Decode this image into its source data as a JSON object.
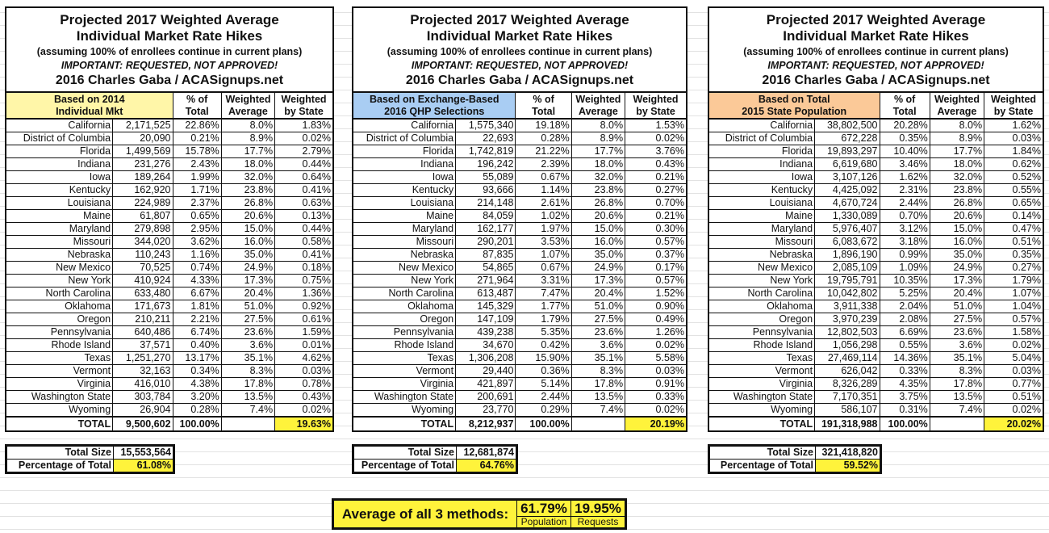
{
  "common": {
    "title_line1": "Projected 2017 Weighted Average",
    "title_line2": "Individual Market Rate Hikes",
    "subtitle": "(assuming 100% of enrollees continue in current plans)",
    "warning": "IMPORTANT: REQUESTED, NOT APPROVED!",
    "credit": "2016 Charles Gaba / ACASignups.net",
    "col_pct": [
      "% of",
      "Total"
    ],
    "col_avg": [
      "Weighted",
      "Average"
    ],
    "col_wbs": [
      "Weighted",
      "by State"
    ],
    "total_label": "TOTAL",
    "total_size_label": "Total Size",
    "pct_total_label": "Percentage of Total"
  },
  "colors": {
    "highlight": "#fff33b",
    "basis_2014": "#fff6a8",
    "basis_qhp": "#a9cdf3",
    "basis_pop": "#fbc998",
    "grid": "#e2e2e2"
  },
  "tables": [
    {
      "basis": [
        "Based on 2014",
        "Individual Mkt"
      ],
      "rows": [
        [
          "California",
          "2,171,525",
          "22.86%",
          "8.0%",
          "1.83%"
        ],
        [
          "District of Columbia",
          "20,090",
          "0.21%",
          "8.9%",
          "0.02%"
        ],
        [
          "Florida",
          "1,499,569",
          "15.78%",
          "17.7%",
          "2.79%"
        ],
        [
          "Indiana",
          "231,276",
          "2.43%",
          "18.0%",
          "0.44%"
        ],
        [
          "Iowa",
          "189,264",
          "1.99%",
          "32.0%",
          "0.64%"
        ],
        [
          "Kentucky",
          "162,920",
          "1.71%",
          "23.8%",
          "0.41%"
        ],
        [
          "Louisiana",
          "224,989",
          "2.37%",
          "26.8%",
          "0.63%"
        ],
        [
          "Maine",
          "61,807",
          "0.65%",
          "20.6%",
          "0.13%"
        ],
        [
          "Maryland",
          "279,898",
          "2.95%",
          "15.0%",
          "0.44%"
        ],
        [
          "Missouri",
          "344,020",
          "3.62%",
          "16.0%",
          "0.58%"
        ],
        [
          "Nebraska",
          "110,243",
          "1.16%",
          "35.0%",
          "0.41%"
        ],
        [
          "New Mexico",
          "70,525",
          "0.74%",
          "24.9%",
          "0.18%"
        ],
        [
          "New York",
          "410,924",
          "4.33%",
          "17.3%",
          "0.75%"
        ],
        [
          "North Carolina",
          "633,480",
          "6.67%",
          "20.4%",
          "1.36%"
        ],
        [
          "Oklahoma",
          "171,673",
          "1.81%",
          "51.0%",
          "0.92%"
        ],
        [
          "Oregon",
          "210,211",
          "2.21%",
          "27.5%",
          "0.61%"
        ],
        [
          "Pennsylvania",
          "640,486",
          "6.74%",
          "23.6%",
          "1.59%"
        ],
        [
          "Rhode Island",
          "37,571",
          "0.40%",
          "3.6%",
          "0.01%"
        ],
        [
          "Texas",
          "1,251,270",
          "13.17%",
          "35.1%",
          "4.62%"
        ],
        [
          "Vermont",
          "32,163",
          "0.34%",
          "8.3%",
          "0.03%"
        ],
        [
          "Virginia",
          "416,010",
          "4.38%",
          "17.8%",
          "0.78%"
        ],
        [
          "Washington State",
          "303,784",
          "3.20%",
          "13.5%",
          "0.43%"
        ],
        [
          "Wyoming",
          "26,904",
          "0.28%",
          "7.4%",
          "0.02%"
        ]
      ],
      "total": {
        "count": "9,500,602",
        "pct": "100.00%",
        "weighted": "19.63%"
      },
      "total_size": "15,553,564",
      "pct_of_total": "61.08%"
    },
    {
      "basis": [
        "Based on Exchange-Based",
        "2016 QHP Selections"
      ],
      "rows": [
        [
          "California",
          "1,575,340",
          "19.18%",
          "8.0%",
          "1.53%"
        ],
        [
          "District of Columbia",
          "22,693",
          "0.28%",
          "8.9%",
          "0.02%"
        ],
        [
          "Florida",
          "1,742,819",
          "21.22%",
          "17.7%",
          "3.76%"
        ],
        [
          "Indiana",
          "196,242",
          "2.39%",
          "18.0%",
          "0.43%"
        ],
        [
          "Iowa",
          "55,089",
          "0.67%",
          "32.0%",
          "0.21%"
        ],
        [
          "Kentucky",
          "93,666",
          "1.14%",
          "23.8%",
          "0.27%"
        ],
        [
          "Louisiana",
          "214,148",
          "2.61%",
          "26.8%",
          "0.70%"
        ],
        [
          "Maine",
          "84,059",
          "1.02%",
          "20.6%",
          "0.21%"
        ],
        [
          "Maryland",
          "162,177",
          "1.97%",
          "15.0%",
          "0.30%"
        ],
        [
          "Missouri",
          "290,201",
          "3.53%",
          "16.0%",
          "0.57%"
        ],
        [
          "Nebraska",
          "87,835",
          "1.07%",
          "35.0%",
          "0.37%"
        ],
        [
          "New Mexico",
          "54,865",
          "0.67%",
          "24.9%",
          "0.17%"
        ],
        [
          "New York",
          "271,964",
          "3.31%",
          "17.3%",
          "0.57%"
        ],
        [
          "North Carolina",
          "613,487",
          "7.47%",
          "20.4%",
          "1.52%"
        ],
        [
          "Oklahoma",
          "145,329",
          "1.77%",
          "51.0%",
          "0.90%"
        ],
        [
          "Oregon",
          "147,109",
          "1.79%",
          "27.5%",
          "0.49%"
        ],
        [
          "Pennsylvania",
          "439,238",
          "5.35%",
          "23.6%",
          "1.26%"
        ],
        [
          "Rhode Island",
          "34,670",
          "0.42%",
          "3.6%",
          "0.02%"
        ],
        [
          "Texas",
          "1,306,208",
          "15.90%",
          "35.1%",
          "5.58%"
        ],
        [
          "Vermont",
          "29,440",
          "0.36%",
          "8.3%",
          "0.03%"
        ],
        [
          "Virginia",
          "421,897",
          "5.14%",
          "17.8%",
          "0.91%"
        ],
        [
          "Washington State",
          "200,691",
          "2.44%",
          "13.5%",
          "0.33%"
        ],
        [
          "Wyoming",
          "23,770",
          "0.29%",
          "7.4%",
          "0.02%"
        ]
      ],
      "total": {
        "count": "8,212,937",
        "pct": "100.00%",
        "weighted": "20.19%"
      },
      "total_size": "12,681,874",
      "pct_of_total": "64.76%"
    },
    {
      "basis": [
        "Based on Total",
        "2015 State Population"
      ],
      "rows": [
        [
          "California",
          "38,802,500",
          "20.28%",
          "8.0%",
          "1.62%"
        ],
        [
          "District of Columbia",
          "672,228",
          "0.35%",
          "8.9%",
          "0.03%"
        ],
        [
          "Florida",
          "19,893,297",
          "10.40%",
          "17.7%",
          "1.84%"
        ],
        [
          "Indiana",
          "6,619,680",
          "3.46%",
          "18.0%",
          "0.62%"
        ],
        [
          "Iowa",
          "3,107,126",
          "1.62%",
          "32.0%",
          "0.52%"
        ],
        [
          "Kentucky",
          "4,425,092",
          "2.31%",
          "23.8%",
          "0.55%"
        ],
        [
          "Louisiana",
          "4,670,724",
          "2.44%",
          "26.8%",
          "0.65%"
        ],
        [
          "Maine",
          "1,330,089",
          "0.70%",
          "20.6%",
          "0.14%"
        ],
        [
          "Maryland",
          "5,976,407",
          "3.12%",
          "15.0%",
          "0.47%"
        ],
        [
          "Missouri",
          "6,083,672",
          "3.18%",
          "16.0%",
          "0.51%"
        ],
        [
          "Nebraska",
          "1,896,190",
          "0.99%",
          "35.0%",
          "0.35%"
        ],
        [
          "New Mexico",
          "2,085,109",
          "1.09%",
          "24.9%",
          "0.27%"
        ],
        [
          "New York",
          "19,795,791",
          "10.35%",
          "17.3%",
          "1.79%"
        ],
        [
          "North Carolina",
          "10,042,802",
          "5.25%",
          "20.4%",
          "1.07%"
        ],
        [
          "Oklahoma",
          "3,911,338",
          "2.04%",
          "51.0%",
          "1.04%"
        ],
        [
          "Oregon",
          "3,970,239",
          "2.08%",
          "27.5%",
          "0.57%"
        ],
        [
          "Pennsylvania",
          "12,802,503",
          "6.69%",
          "23.6%",
          "1.58%"
        ],
        [
          "Rhode Island",
          "1,056,298",
          "0.55%",
          "3.6%",
          "0.02%"
        ],
        [
          "Texas",
          "27,469,114",
          "14.36%",
          "35.1%",
          "5.04%"
        ],
        [
          "Vermont",
          "626,042",
          "0.33%",
          "8.3%",
          "0.03%"
        ],
        [
          "Virginia",
          "8,326,289",
          "4.35%",
          "17.8%",
          "0.77%"
        ],
        [
          "Washington State",
          "7,170,351",
          "3.75%",
          "13.5%",
          "0.51%"
        ],
        [
          "Wyoming",
          "586,107",
          "0.31%",
          "7.4%",
          "0.02%"
        ]
      ],
      "total": {
        "count": "191,318,988",
        "pct": "100.00%",
        "weighted": "20.02%"
      },
      "total_size": "321,418,820",
      "pct_of_total": "59.52%"
    }
  ],
  "average": {
    "label": "Average of all 3 methods:",
    "population_value": "61.79%",
    "population_label": "Population",
    "requests_value": "19.95%",
    "requests_label": "Requests"
  }
}
